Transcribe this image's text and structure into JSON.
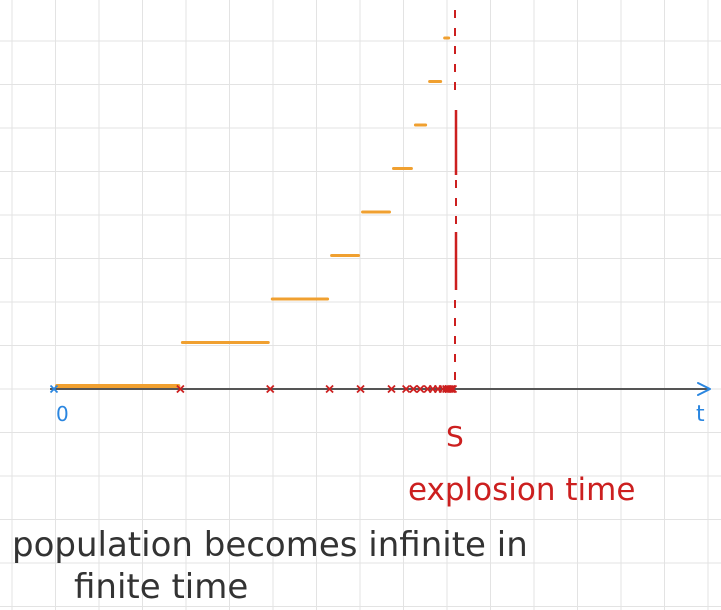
{
  "labels": {
    "origin": "0",
    "t_axis": "t",
    "explosion_symbol": "S",
    "explosion": "explosion time",
    "caption_line1": "population becomes infinite in",
    "caption_line2": "finite time"
  },
  "colors": {
    "background": "#ffffff",
    "grid": "#e3e3e3",
    "axis": "#555555",
    "axis_arrow": "#2a86e0",
    "step": "#f0a030",
    "jump_mark": "#cc1f1f",
    "asymptote": "#cc1f1f",
    "caption": "#333333"
  },
  "steps": {
    "levels": [
      0,
      1,
      2,
      3,
      4,
      5,
      6,
      7,
      8,
      9,
      10
    ],
    "jump_times": [
      0,
      2.87,
      4.96,
      6.34,
      7.06,
      7.78,
      8.29,
      8.62,
      8.97,
      9.14,
      9.18
    ],
    "explosion_time": 9.28,
    "level_of_last_segment": 10
  },
  "jump_marks": [
    2.87,
    4.96,
    6.34,
    7.06,
    7.78,
    8.12,
    8.29,
    8.45,
    8.62,
    8.74,
    8.86,
    8.97,
    9.05,
    9.1,
    9.14,
    9.18,
    9.21
  ],
  "grid": true
}
